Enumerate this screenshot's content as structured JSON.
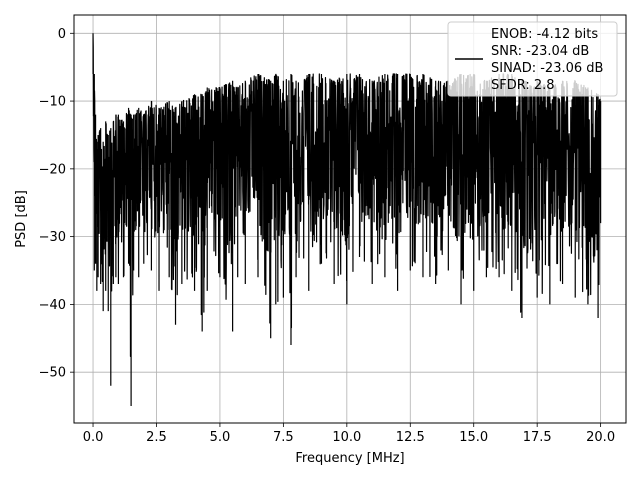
{
  "chart_data": {
    "type": "line",
    "title": "",
    "xlabel": "Frequency [MHz]",
    "ylabel": "PSD [dB]",
    "xlim": [
      -0.75,
      21.0
    ],
    "ylim": [
      -57.5,
      2.7
    ],
    "grid": true,
    "legend_position": "top-right",
    "line_color": "#000000",
    "x_ticks": [
      {
        "value": 0.0,
        "label": "0.0"
      },
      {
        "value": 2.5,
        "label": "2.5"
      },
      {
        "value": 5.0,
        "label": "5.0"
      },
      {
        "value": 7.5,
        "label": "7.5"
      },
      {
        "value": 10.0,
        "label": "10.0"
      },
      {
        "value": 12.5,
        "label": "12.5"
      },
      {
        "value": 15.0,
        "label": "15.0"
      },
      {
        "value": 17.5,
        "label": "17.5"
      },
      {
        "value": 20.0,
        "label": "20.0"
      }
    ],
    "y_ticks": [
      {
        "value": 0,
        "label": "0"
      },
      {
        "value": -10,
        "label": "−10"
      },
      {
        "value": -20,
        "label": "−20"
      },
      {
        "value": -30,
        "label": "−30"
      },
      {
        "value": -40,
        "label": "−40"
      },
      {
        "value": -50,
        "label": "−50"
      }
    ],
    "legend": {
      "lines": [
        "ENOB: -4.12 bits",
        "SNR: -23.04 dB",
        "SINAD: -23.06 dB",
        "SFDR: 2.8"
      ]
    },
    "series": [
      {
        "x": [
          0.0,
          0.05,
          0.1,
          0.15,
          0.2,
          0.3,
          0.4,
          0.5,
          0.6,
          0.7,
          0.8,
          0.9,
          1.0,
          1.2,
          1.4,
          1.5,
          1.6,
          1.8,
          2.0,
          2.3,
          2.6,
          3.0,
          3.25,
          3.5,
          4.0,
          4.3,
          4.5,
          5.0,
          5.5,
          5.7,
          6.0,
          6.5,
          7.0,
          7.2,
          7.5,
          7.8,
          8.0,
          8.5,
          9.0,
          9.5,
          10.0,
          10.5,
          11.0,
          11.5,
          12.0,
          12.5,
          13.0,
          13.5,
          14.0,
          14.5,
          15.0,
          15.5,
          16.0,
          16.5,
          16.9,
          17.5,
          18.0,
          18.5,
          19.0,
          19.5,
          19.9,
          20.0
        ],
        "y_high": [
          0,
          -6,
          -12,
          -16,
          -15,
          -14,
          -16,
          -13,
          -15,
          -14,
          -13,
          -12,
          -12,
          -13,
          -11,
          -12,
          -12,
          -11,
          -12,
          -10,
          -11,
          -10,
          -11,
          -10,
          -9,
          -9,
          -8,
          -8,
          -7,
          -8,
          -7,
          -6,
          -7,
          -6,
          -7,
          -6,
          -7,
          -6,
          -6,
          -7,
          -6,
          -6,
          -7,
          -6,
          -6,
          -6,
          -6,
          -7,
          -7,
          -6,
          -6,
          -7,
          -6,
          -6,
          -7,
          -7,
          -8,
          -7,
          -7,
          -8,
          -9,
          -10
        ],
        "y_low": [
          -6,
          -35,
          -34,
          -38,
          -36,
          -37,
          -41,
          -38,
          -41,
          -52,
          -37,
          -36,
          -37,
          -36,
          -34,
          -55,
          -35,
          -36,
          -34,
          -35,
          -38,
          -36,
          -43,
          -37,
          -38,
          -44,
          -38,
          -36,
          -44,
          -36,
          -37,
          -36,
          -45,
          -40,
          -39,
          -46,
          -36,
          -38,
          -34,
          -37,
          -40,
          -33,
          -37,
          -36,
          -38,
          -35,
          -36,
          -37,
          -35,
          -40,
          -38,
          -36,
          -36,
          -38,
          -42,
          -39,
          -40,
          -37,
          -39,
          -40,
          -42,
          -28
        ]
      }
    ]
  }
}
